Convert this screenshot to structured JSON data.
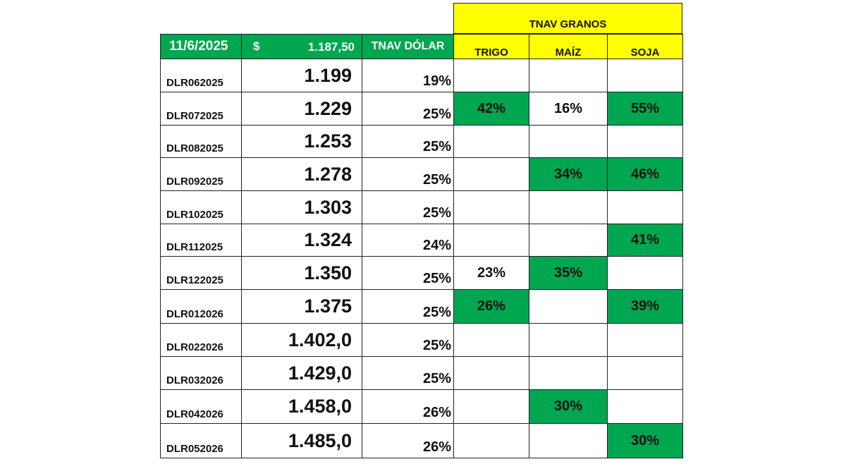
{
  "header": {
    "granos_title": "TNAV GRANOS",
    "date": "11/6/2025",
    "currency_symbol": "$",
    "spot": "1.187,50",
    "tnav_dolar": "TNAV DÓLAR",
    "trigo": "TRIGO",
    "maiz": "MAÍZ",
    "soja": "SOJA"
  },
  "colors": {
    "green": "#00a650",
    "yellow": "#ffff00"
  },
  "rows": [
    {
      "contract": "DLR062025",
      "price": "1.199",
      "tnav": "19%",
      "trigo": "",
      "maiz": "",
      "soja": ""
    },
    {
      "contract": "DLR072025",
      "price": "1.229",
      "tnav": "25%",
      "trigo": "42%",
      "maiz": "16%",
      "soja": "55%"
    },
    {
      "contract": "DLR082025",
      "price": "1.253",
      "tnav": "25%",
      "trigo": "",
      "maiz": "",
      "soja": ""
    },
    {
      "contract": "DLR092025",
      "price": "1.278",
      "tnav": "25%",
      "trigo": "",
      "maiz": "34%",
      "soja": "46%"
    },
    {
      "contract": "DLR102025",
      "price": "1.303",
      "tnav": "25%",
      "trigo": "",
      "maiz": "",
      "soja": ""
    },
    {
      "contract": "DLR112025",
      "price": "1.324",
      "tnav": "24%",
      "trigo": "",
      "maiz": "",
      "soja": "41%"
    },
    {
      "contract": "DLR122025",
      "price": "1.350",
      "tnav": "25%",
      "trigo": "23%",
      "maiz": "35%",
      "soja": ""
    },
    {
      "contract": "DLR012026",
      "price": "1.375",
      "tnav": "25%",
      "trigo": "26%",
      "maiz": "",
      "soja": "39%"
    },
    {
      "contract": "DLR022026",
      "price": "1.402,0",
      "tnav": "25%",
      "trigo": "",
      "maiz": "",
      "soja": ""
    },
    {
      "contract": "DLR032026",
      "price": "1.429,0",
      "tnav": "25%",
      "trigo": "",
      "maiz": "",
      "soja": ""
    },
    {
      "contract": "DLR042026",
      "price": "1.458,0",
      "tnav": "26%",
      "trigo": "",
      "maiz": "30%",
      "soja": ""
    },
    {
      "contract": "DLR052026",
      "price": "1.485,0",
      "tnav": "26%",
      "trigo": "",
      "maiz": "",
      "soja": "30%"
    }
  ]
}
